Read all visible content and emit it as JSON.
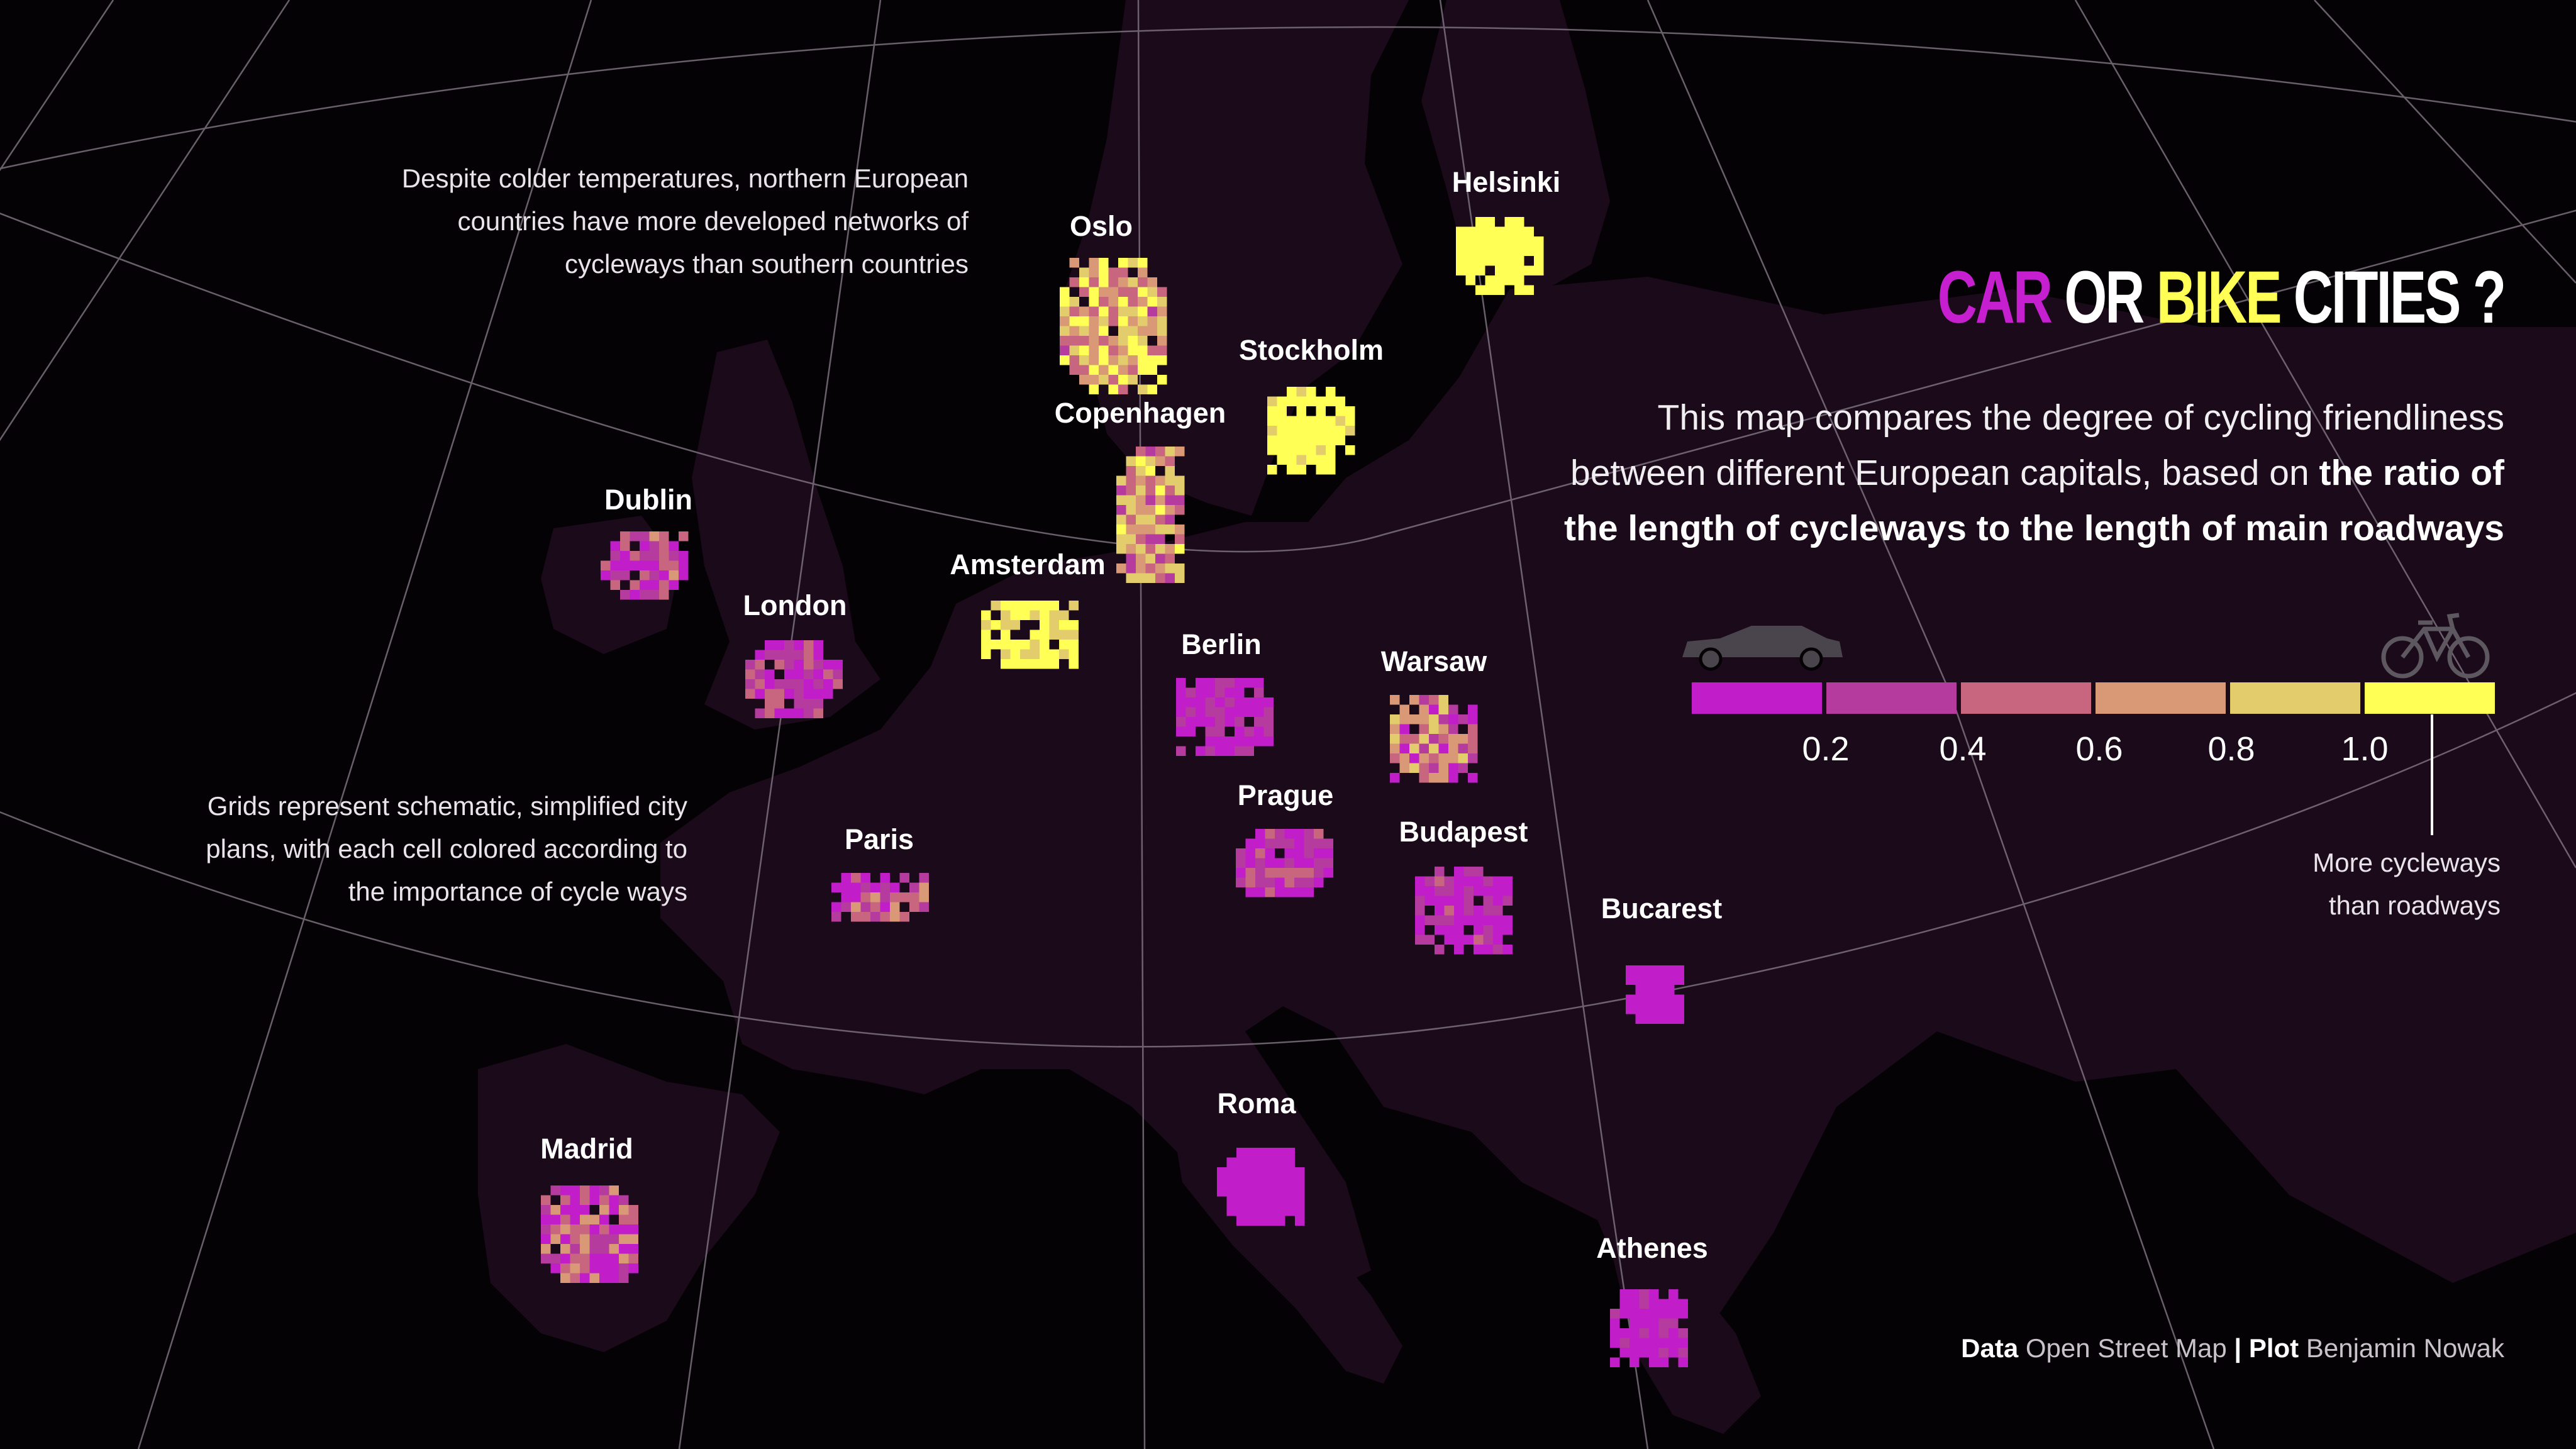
{
  "title": {
    "car": "CAR",
    "or": "OR",
    "bike": "BIKE",
    "cities": "CITIES ?"
  },
  "subtitle": {
    "line1": "This map compares the degree of cycling friendliness",
    "line2": "between different European capitals, based on",
    "bold1": "the ratio of",
    "bold2": "the length of cycleways to the length of main roadways"
  },
  "annotations": {
    "north": [
      "Despite colder temperatures, northern European",
      "countries have more developed networks of",
      "cycleways than southern countries"
    ],
    "grid": [
      "Grids represent schematic, simplified city",
      "plans, with each cell colored according to",
      "the importance of cycle ways"
    ]
  },
  "legend": {
    "ticks": [
      "0.2",
      "0.4",
      "0.6",
      "0.8",
      "1.0"
    ],
    "note": [
      "More cycleways",
      "than roadways"
    ],
    "icon_left": "car-icon",
    "icon_right": "bicycle-icon",
    "colors": [
      "#c11dc9",
      "#b53c9e",
      "#c8667f",
      "#d99876",
      "#e3cc6c",
      "#ffff55"
    ]
  },
  "colors": {
    "background": "#050205",
    "land": "#1a0a1a",
    "graticule": "#8a7f8c",
    "car": "#c61fd0",
    "bike": "#ffff55"
  },
  "credit": {
    "data_label": "Data",
    "data_value": "Open Street Map",
    "sep": "|",
    "plot_label": "Plot",
    "plot_value": "Benjamin Nowak"
  },
  "cities": [
    {
      "name": "Helsinki",
      "ratio": 0.97,
      "spread": 0.08
    },
    {
      "name": "Oslo",
      "ratio": 0.68,
      "spread": 0.35
    },
    {
      "name": "Stockholm",
      "ratio": 0.93,
      "spread": 0.12
    },
    {
      "name": "Copenhagen",
      "ratio": 0.55,
      "spread": 0.35
    },
    {
      "name": "Dublin",
      "ratio": 0.22,
      "spread": 0.3
    },
    {
      "name": "Amsterdam",
      "ratio": 0.88,
      "spread": 0.2
    },
    {
      "name": "London",
      "ratio": 0.2,
      "spread": 0.25
    },
    {
      "name": "Berlin",
      "ratio": 0.12,
      "spread": 0.18
    },
    {
      "name": "Warsaw",
      "ratio": 0.38,
      "spread": 0.4
    },
    {
      "name": "Prague",
      "ratio": 0.15,
      "spread": 0.28
    },
    {
      "name": "Budapest",
      "ratio": 0.14,
      "spread": 0.22
    },
    {
      "name": "Paris",
      "ratio": 0.3,
      "spread": 0.3
    },
    {
      "name": "Bucarest",
      "ratio": 0.05,
      "spread": 0.1
    },
    {
      "name": "Madrid",
      "ratio": 0.25,
      "spread": 0.4
    },
    {
      "name": "Roma",
      "ratio": 0.03,
      "spread": 0.05
    },
    {
      "name": "Athenes",
      "ratio": 0.06,
      "spread": 0.15
    }
  ]
}
